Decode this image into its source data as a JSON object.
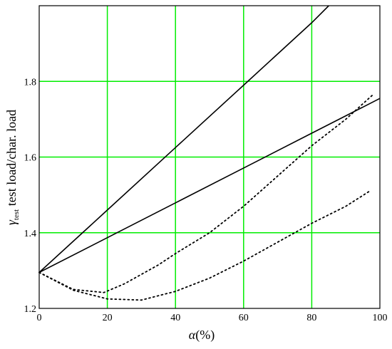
{
  "chart_data": {
    "type": "line",
    "title": "",
    "xlabel": {
      "symbol": "α",
      "unit": "(%)"
    },
    "ylabel": {
      "symbol": "γ",
      "subscript": "test",
      "text": " test load/char. load"
    },
    "xlim": [
      0,
      100
    ],
    "ylim": [
      1.2,
      2.0
    ],
    "grid": true,
    "x_ticks": [
      {
        "value": 0,
        "label": "0"
      },
      {
        "value": 20,
        "label": "20"
      },
      {
        "value": 40,
        "label": "40"
      },
      {
        "value": 60,
        "label": "60"
      },
      {
        "value": 80,
        "label": "80"
      },
      {
        "value": 100,
        "label": "100"
      }
    ],
    "y_ticks": [
      {
        "value": 1.2,
        "label": "1.2"
      },
      {
        "value": 1.4,
        "label": "1.4"
      },
      {
        "value": 1.6,
        "label": "1.6"
      },
      {
        "value": 1.8,
        "label": "1.8"
      }
    ],
    "series": [
      {
        "style": "solid",
        "x": [
          0,
          20,
          40,
          60,
          80,
          85
        ],
        "y": [
          1.295,
          1.46,
          1.625,
          1.79,
          1.955,
          2.0
        ]
      },
      {
        "style": "solid",
        "x": [
          0,
          20,
          40,
          60,
          80,
          100
        ],
        "y": [
          1.295,
          1.387,
          1.479,
          1.571,
          1.663,
          1.755
        ]
      },
      {
        "style": "dotted",
        "x": [
          0,
          10,
          19,
          25,
          30,
          35,
          40,
          50,
          60,
          70,
          80,
          90,
          98
        ],
        "y": [
          1.295,
          1.25,
          1.242,
          1.265,
          1.29,
          1.315,
          1.345,
          1.4,
          1.47,
          1.55,
          1.63,
          1.7,
          1.765
        ]
      },
      {
        "style": "dotted",
        "x": [
          0,
          10,
          20,
          30,
          40,
          50,
          60,
          70,
          80,
          90,
          97
        ],
        "y": [
          1.295,
          1.248,
          1.225,
          1.222,
          1.245,
          1.28,
          1.325,
          1.375,
          1.425,
          1.47,
          1.51
        ]
      }
    ],
    "colors": {
      "grid": "#00ee00",
      "line": "#000000",
      "frame": "#000000"
    }
  }
}
